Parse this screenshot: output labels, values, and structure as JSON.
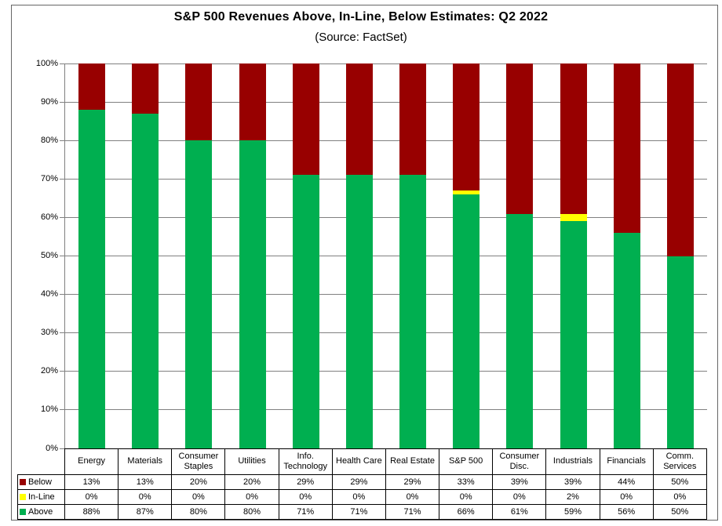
{
  "title": "S&P 500 Revenues Above, In-Line, Below Estimates: Q2 2022",
  "subtitle": "(Source: FactSet)",
  "colors": {
    "above": "#00AF50",
    "inline": "#FFFF00",
    "below": "#980000",
    "gridline": "#808080",
    "table_border": "#000000",
    "text": "#000000"
  },
  "chart_data": {
    "type": "bar",
    "stacked": true,
    "title": "S&P 500 Revenues Above, In-Line, Below Estimates: Q2 2022",
    "subtitle": "(Source: FactSet)",
    "categories": [
      "Energy",
      "Materials",
      "Consumer Staples",
      "Utilities",
      "Info. Technology",
      "Health Care",
      "Real Estate",
      "S&P 500",
      "Consumer Disc.",
      "Industrials",
      "Financials",
      "Comm. Services"
    ],
    "series": [
      {
        "name": "Below",
        "color_key": "below",
        "values": [
          13,
          13,
          20,
          20,
          29,
          29,
          29,
          33,
          39,
          39,
          44,
          50
        ]
      },
      {
        "name": "In-Line",
        "color_key": "inline",
        "values": [
          0,
          0,
          0,
          0,
          0,
          0,
          0,
          0,
          0,
          2,
          0,
          0
        ]
      },
      {
        "name": "Above",
        "color_key": "above",
        "values": [
          88,
          87,
          80,
          80,
          71,
          71,
          71,
          66,
          61,
          59,
          56,
          50
        ]
      }
    ],
    "inline_visual_pct": [
      0,
      0,
      0,
      0,
      0,
      0,
      0,
      1,
      0,
      2,
      0,
      0
    ],
    "ylim": [
      0,
      100
    ],
    "y_tick_labels": [
      "0%",
      "10%",
      "20%",
      "30%",
      "40%",
      "50%",
      "60%",
      "70%",
      "80%",
      "90%",
      "100%"
    ],
    "value_suffix": "%",
    "grid": true,
    "legend_position": "table-left-column"
  }
}
